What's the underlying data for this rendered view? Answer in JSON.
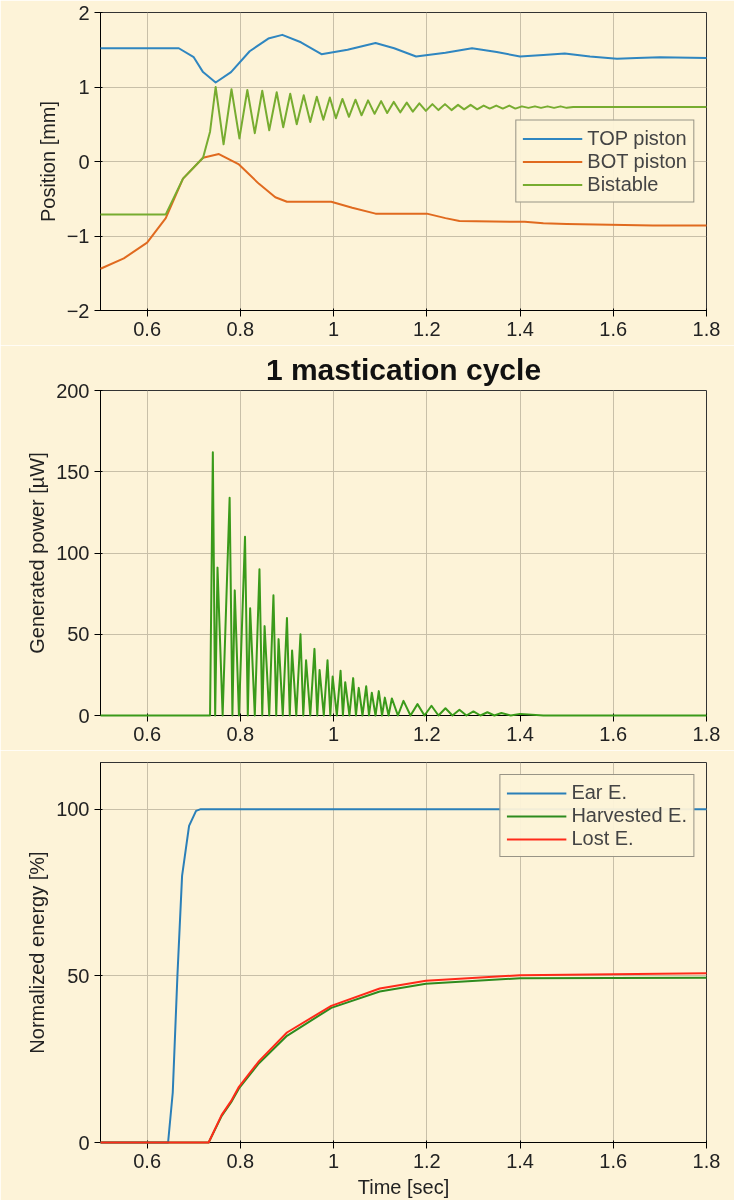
{
  "chart_data": [
    {
      "type": "line",
      "ylabel": "Position [mm]",
      "xlim": [
        0.5,
        1.8
      ],
      "ylim": [
        -2,
        2
      ],
      "xticks": [
        0.6,
        0.8,
        1,
        1.2,
        1.4,
        1.6,
        1.8
      ],
      "yticks": [
        -2,
        -1,
        0,
        1,
        2
      ],
      "grid": true,
      "legend": "right",
      "series": [
        {
          "name": "TOP piston",
          "color": "#2f86c0",
          "x": [
            0.5,
            0.668,
            0.7,
            0.72,
            0.747,
            0.78,
            0.82,
            0.86,
            0.89,
            0.93,
            0.974,
            1.03,
            1.09,
            1.13,
            1.177,
            1.24,
            1.297,
            1.35,
            1.4,
            1.45,
            1.496,
            1.55,
            1.608,
            1.65,
            1.7,
            1.8
          ],
          "values": [
            1.52,
            1.52,
            1.4,
            1.2,
            1.06,
            1.2,
            1.48,
            1.65,
            1.7,
            1.6,
            1.44,
            1.5,
            1.59,
            1.52,
            1.41,
            1.46,
            1.52,
            1.47,
            1.41,
            1.43,
            1.45,
            1.41,
            1.38,
            1.39,
            1.4,
            1.39
          ]
        },
        {
          "name": "BOT piston",
          "color": "#e06a1f",
          "x": [
            0.5,
            0.55,
            0.6,
            0.64,
            0.677,
            0.72,
            0.754,
            0.797,
            0.84,
            0.875,
            0.9,
            0.995,
            1.04,
            1.09,
            1.2,
            1.24,
            1.27,
            1.41,
            1.45,
            1.5,
            1.685,
            1.8
          ],
          "values": [
            -1.44,
            -1.3,
            -1.09,
            -0.76,
            -0.23,
            0.05,
            0.1,
            -0.04,
            -0.3,
            -0.48,
            -0.54,
            -0.54,
            -0.62,
            -0.7,
            -0.7,
            -0.76,
            -0.8,
            -0.81,
            -0.83,
            -0.84,
            -0.86,
            -0.86
          ]
        },
        {
          "name": "Bistable",
          "color": "#77ac30",
          "x": [
            0.5,
            0.64,
            0.677,
            0.72,
            0.735,
            0.747,
            0.764,
            0.781,
            0.798,
            0.815,
            0.831,
            0.847,
            0.862,
            0.878,
            0.892,
            0.907,
            0.921,
            0.936,
            0.95,
            0.964,
            0.978,
            0.992,
            1.005,
            1.019,
            1.033,
            1.047,
            1.06,
            1.074,
            1.088,
            1.102,
            1.115,
            1.129,
            1.143,
            1.157,
            1.17,
            1.184,
            1.198,
            1.212,
            1.225,
            1.239,
            1.253,
            1.267,
            1.28,
            1.294,
            1.308,
            1.322,
            1.335,
            1.349,
            1.363,
            1.377,
            1.39,
            1.404,
            1.418,
            1.432,
            1.445,
            1.459,
            1.473,
            1.487,
            1.5,
            1.514,
            1.6,
            1.8
          ],
          "values": [
            -0.71,
            -0.71,
            -0.23,
            0.05,
            0.4,
            1.0,
            0.23,
            0.97,
            0.31,
            0.96,
            0.38,
            0.95,
            0.42,
            0.93,
            0.46,
            0.91,
            0.5,
            0.89,
            0.53,
            0.87,
            0.56,
            0.86,
            0.58,
            0.84,
            0.6,
            0.83,
            0.62,
            0.82,
            0.64,
            0.81,
            0.65,
            0.8,
            0.66,
            0.79,
            0.67,
            0.78,
            0.68,
            0.77,
            0.69,
            0.77,
            0.69,
            0.76,
            0.7,
            0.76,
            0.7,
            0.75,
            0.71,
            0.75,
            0.71,
            0.75,
            0.71,
            0.74,
            0.72,
            0.74,
            0.72,
            0.74,
            0.72,
            0.74,
            0.72,
            0.73,
            0.73,
            0.73
          ]
        }
      ]
    },
    {
      "type": "line",
      "title": "1 mastication cycle",
      "ylabel": "Generated power [µW]",
      "xlim": [
        0.5,
        1.8
      ],
      "ylim": [
        0,
        200
      ],
      "xticks": [
        0.6,
        0.8,
        1,
        1.2,
        1.4,
        1.6,
        1.8
      ],
      "yticks": [
        0,
        50,
        100,
        150,
        200
      ],
      "grid": true,
      "series": [
        {
          "color": "#3a9a1a",
          "x": [
            0.5,
            0.735,
            0.741,
            0.746,
            0.751,
            0.762,
            0.777,
            0.783,
            0.788,
            0.797,
            0.81,
            0.816,
            0.821,
            0.831,
            0.841,
            0.847,
            0.852,
            0.862,
            0.871,
            0.877,
            0.882,
            0.891,
            0.9,
            0.906,
            0.911,
            0.92,
            0.929,
            0.935,
            0.941,
            0.95,
            0.959,
            0.965,
            0.97,
            0.979,
            0.987,
            0.993,
            0.998,
            1.007,
            1.015,
            1.02,
            1.025,
            1.034,
            1.042,
            1.048,
            1.054,
            1.062,
            1.07,
            1.076,
            1.082,
            1.09,
            1.097,
            1.104,
            1.11,
            1.118,
            1.125,
            1.138,
            1.15,
            1.165,
            1.18,
            1.195,
            1.21,
            1.225,
            1.24,
            1.255,
            1.27,
            1.285,
            1.3,
            1.315,
            1.33,
            1.345,
            1.36,
            1.38,
            1.4,
            1.45,
            1.8
          ],
          "values": [
            0,
            0,
            162,
            0,
            91,
            0,
            134,
            0,
            77,
            0,
            110,
            0,
            66,
            0,
            90,
            0,
            55,
            0,
            74,
            0,
            47,
            0,
            60,
            0,
            40,
            0,
            50,
            0,
            34,
            0,
            41,
            0,
            28,
            0,
            34,
            0,
            24,
            0,
            27.5,
            0,
            20.5,
            0,
            23,
            0,
            17,
            0,
            18,
            0,
            14,
            0,
            15,
            0,
            11,
            0,
            10.5,
            0,
            9,
            0,
            7,
            0,
            6,
            0,
            4.5,
            0,
            3.5,
            0,
            2.5,
            0,
            2,
            0,
            1.5,
            0,
            1,
            0,
            0
          ]
        }
      ]
    },
    {
      "type": "line",
      "xlabel": "Time [sec]",
      "ylabel": "Normalized energy [%]",
      "xlim": [
        0.5,
        1.8
      ],
      "ylim": [
        0,
        114
      ],
      "xticks": [
        0.6,
        0.8,
        1,
        1.2,
        1.4,
        1.6,
        1.8
      ],
      "yticks": [
        0,
        50,
        100
      ],
      "grid": true,
      "legend": "top right",
      "series": [
        {
          "name": "Ear E.",
          "color": "#2a7fb8",
          "x": [
            0.5,
            0.645,
            0.655,
            0.665,
            0.675,
            0.69,
            0.705,
            0.715,
            1.8
          ],
          "values": [
            0,
            0,
            15,
            50,
            80,
            95,
            99.5,
            100,
            100
          ]
        },
        {
          "name": "Harvested E.",
          "color": "#2e8b1e",
          "x": [
            0.5,
            0.732,
            0.76,
            0.78,
            0.797,
            0.84,
            0.9,
            0.995,
            1.099,
            1.198,
            1.4,
            1.8
          ],
          "values": [
            0,
            0,
            8,
            12,
            16.2,
            23.8,
            32,
            40.4,
            45.3,
            47.6,
            49.3,
            49.4
          ]
        },
        {
          "name": "Lost E.",
          "color": "#ff2a1a",
          "x": [
            0.5,
            0.732,
            0.76,
            0.78,
            0.797,
            0.84,
            0.9,
            0.995,
            1.099,
            1.198,
            1.4,
            1.8
          ],
          "values": [
            0,
            0,
            8.3,
            12.4,
            16.7,
            24.4,
            33,
            41,
            46.2,
            48.5,
            50.2,
            50.8
          ]
        }
      ]
    }
  ]
}
